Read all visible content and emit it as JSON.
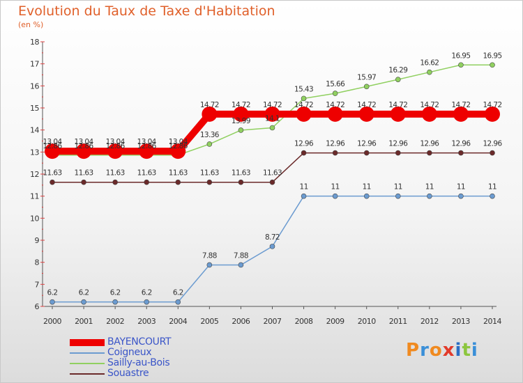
{
  "title": "Evolution du Taux de Taxe d'Habitation",
  "subtitle": "(en %)",
  "logo": [
    "P",
    "r",
    "o",
    "x",
    "i",
    "t",
    "i"
  ],
  "chart_data": {
    "type": "line",
    "x": [
      2000,
      2001,
      2002,
      2003,
      2004,
      2005,
      2006,
      2007,
      2008,
      2009,
      2010,
      2011,
      2012,
      2013,
      2014
    ],
    "ylim": [
      6,
      18
    ],
    "yticks": [
      6,
      7,
      8,
      9,
      10,
      11,
      12,
      13,
      14,
      15,
      16,
      17,
      18
    ],
    "grid": false,
    "legend_position": "bottom-left",
    "series": [
      {
        "name": "BAYENCOURT",
        "color": "#ee0000",
        "width": 10,
        "marker": 11,
        "values": [
          13.04,
          13.04,
          13.04,
          13.04,
          13.04,
          14.72,
          14.72,
          14.72,
          14.72,
          14.72,
          14.72,
          14.72,
          14.72,
          14.72,
          14.72
        ],
        "labels": [
          "13.04",
          "13.04",
          "13.04",
          "13.04",
          "13.04",
          "14.72",
          "14.72",
          "14.72",
          "14.72",
          "14.72",
          "14.72",
          "14.72",
          "14.72",
          "14.72",
          "14.72"
        ]
      },
      {
        "name": "Coigneux",
        "color": "#6b9bd0",
        "width": 1.5,
        "marker": 3.5,
        "values": [
          6.2,
          6.2,
          6.2,
          6.2,
          6.2,
          7.88,
          7.88,
          8.72,
          11,
          11,
          11,
          11,
          11,
          11,
          11
        ],
        "labels": [
          "6.2",
          "6.2",
          "6.2",
          "6.2",
          "6.2",
          "7.88",
          "7.88",
          "8.72",
          "11",
          "11",
          "11",
          "11",
          "11",
          "11",
          "11"
        ]
      },
      {
        "name": "Sailly-au-Bois",
        "color": "#90d060",
        "width": 1.5,
        "marker": 3.5,
        "values": [
          12.86,
          12.86,
          12.86,
          12.86,
          12.86,
          13.36,
          13.99,
          14.1,
          15.43,
          15.66,
          15.97,
          16.29,
          16.62,
          16.95,
          16.95
        ],
        "labels": [
          "12.86",
          "12.86",
          "12.86",
          "12.86",
          "12.86",
          "13.36",
          "13.99",
          "14.1",
          "15.43",
          "15.66",
          "15.97",
          "16.29",
          "16.62",
          "16.95",
          "16.95"
        ]
      },
      {
        "name": "Souastre",
        "color": "#6b2a2a",
        "width": 1.5,
        "marker": 3.5,
        "values": [
          11.63,
          11.63,
          11.63,
          11.63,
          11.63,
          11.63,
          11.63,
          11.63,
          12.96,
          12.96,
          12.96,
          12.96,
          12.96,
          12.96,
          12.96
        ],
        "labels": [
          "11.63",
          "11.63",
          "11.63",
          "11.63",
          "11.63",
          "11.63",
          "11.63",
          "11.63",
          "12.96",
          "12.96",
          "12.96",
          "12.96",
          "12.96",
          "12.96",
          "12.96"
        ]
      }
    ]
  }
}
